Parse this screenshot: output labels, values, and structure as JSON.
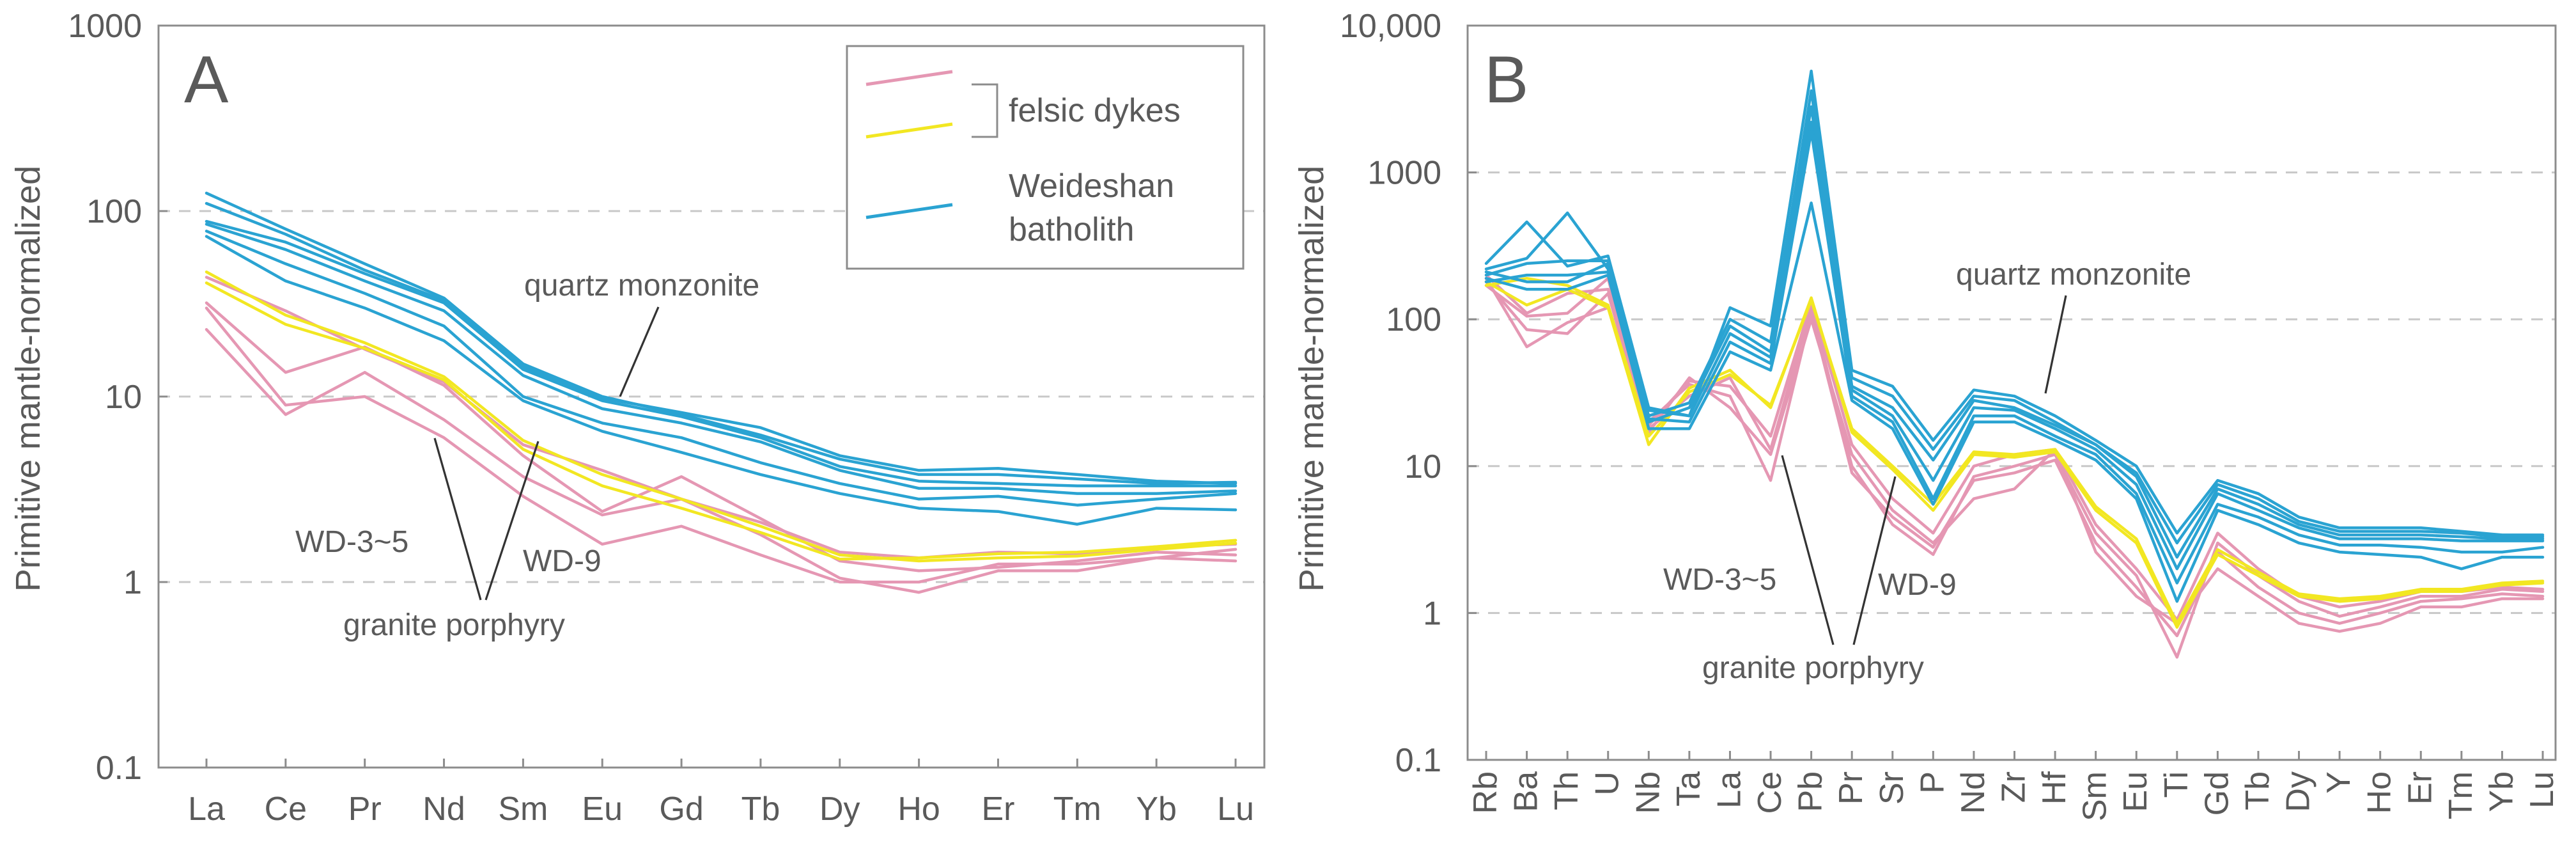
{
  "colors": {
    "felsic_pink": "#e597b3",
    "felsic_yellow": "#f2e722",
    "batholith_blue": "#2aa3d2",
    "axis_gray": "#8c8c8c",
    "text_gray": "#5a5a5a"
  },
  "legend": {
    "felsic": "felsic dykes",
    "batholith_line1": "Weideshan",
    "batholith_line2": "batholith"
  },
  "chart_data": [
    {
      "panel": "A",
      "type": "line",
      "yscale": "log",
      "ylim": [
        0.1,
        1000
      ],
      "ylabel": "Primitive mantle-normalized",
      "yticks": [
        "0.1",
        "1",
        "10",
        "100",
        "1000"
      ],
      "ytick_values": [
        0.1,
        1,
        10,
        100,
        1000
      ],
      "gridlines_at": [
        1,
        10,
        100
      ],
      "categories": [
        "La",
        "Ce",
        "Pr",
        "Nd",
        "Sm",
        "Eu",
        "Gd",
        "Tb",
        "Dy",
        "Ho",
        "Er",
        "Tm",
        "Yb",
        "Lu"
      ],
      "annotations": {
        "quartz": "quartz monzonite",
        "wd35": "WD-3~5",
        "wd9": "WD-9",
        "granite": "granite porphyry"
      },
      "series": [
        {
          "group": "pink",
          "name": "WD-3~5 a",
          "values": [
            44,
            29,
            18,
            12,
            5.5,
            4,
            2.8,
            2.1,
            1.45,
            1.35,
            1.45,
            1.42,
            1.55,
            1.6
          ]
        },
        {
          "group": "pink",
          "name": "WD-3~5 b",
          "values": [
            32,
            13.5,
            18.5,
            11.5,
            4.8,
            2.4,
            3.7,
            2.2,
            1.3,
            1.15,
            1.2,
            1.3,
            1.45,
            1.4
          ]
        },
        {
          "group": "pink",
          "name": "WD-3~5 c",
          "values": [
            23,
            8,
            13.5,
            7.5,
            3.7,
            2.3,
            2.8,
            1.8,
            1.05,
            0.88,
            1.15,
            1.15,
            1.35,
            1.3
          ]
        },
        {
          "group": "pink",
          "name": "WD-3~5 d",
          "values": [
            30,
            9,
            10,
            6,
            2.9,
            1.6,
            2.0,
            1.4,
            1.0,
            1.0,
            1.25,
            1.25,
            1.35,
            1.5
          ]
        },
        {
          "group": "yellow",
          "name": "WD-9 a",
          "values": [
            47,
            27.5,
            19.5,
            12.8,
            5.8,
            3.8,
            2.8,
            2.0,
            1.4,
            1.3,
            1.35,
            1.38,
            1.5,
            1.62
          ]
        },
        {
          "group": "yellow",
          "name": "WD-9 b",
          "values": [
            41,
            24.5,
            18.2,
            12.3,
            5.2,
            3.3,
            2.5,
            1.85,
            1.33,
            1.35,
            1.42,
            1.45,
            1.55,
            1.68
          ]
        },
        {
          "group": "blue",
          "name": "quartz monzonite 1",
          "values": [
            125,
            80,
            52,
            34,
            15,
            10,
            8,
            6.2,
            4.6,
            3.8,
            3.8,
            3.6,
            3.4,
            3.45
          ]
        },
        {
          "group": "blue",
          "name": "quartz monzonite 2",
          "values": [
            110,
            75,
            48,
            33,
            14.5,
            9.8,
            8.2,
            6.8,
            4.8,
            4.0,
            4.1,
            3.8,
            3.5,
            3.4
          ]
        },
        {
          "group": "blue",
          "name": "quartz monzonite 3",
          "values": [
            88,
            68,
            46,
            32,
            14,
            9.5,
            7.8,
            6.0,
            4.2,
            3.5,
            3.4,
            3.3,
            3.3,
            3.3
          ]
        },
        {
          "group": "blue",
          "name": "quartz monzonite 4",
          "values": [
            85,
            62,
            42,
            29,
            13,
            8.6,
            7.2,
            5.7,
            4.0,
            3.2,
            3.2,
            3.0,
            3.0,
            3.1
          ]
        },
        {
          "group": "blue",
          "name": "quartz monzonite 5",
          "values": [
            78,
            52,
            36,
            24,
            10,
            7.2,
            6.0,
            4.4,
            3.4,
            2.8,
            2.9,
            2.6,
            2.8,
            3.0
          ]
        },
        {
          "group": "blue",
          "name": "quartz monzonite 6",
          "values": [
            73,
            42,
            30,
            20,
            9.5,
            6.5,
            5.0,
            3.8,
            3.0,
            2.5,
            2.4,
            2.05,
            2.5,
            2.45
          ]
        }
      ]
    },
    {
      "panel": "B",
      "type": "line",
      "yscale": "log",
      "ylim": [
        0.1,
        10000
      ],
      "ylabel": "Primitive mantle-normalized",
      "yticks": [
        "0.1",
        "1",
        "10",
        "100",
        "1000",
        "10,000"
      ],
      "ytick_values": [
        0.1,
        1,
        10,
        100,
        1000,
        10000
      ],
      "gridlines_at": [
        1,
        10,
        100,
        1000
      ],
      "categories": [
        "Rb",
        "Ba",
        "Th",
        "U",
        "Nb",
        "Ta",
        "La",
        "Ce",
        "Pb",
        "Pr",
        "Sr",
        "P",
        "Nd",
        "Zr",
        "Hf",
        "Sm",
        "Eu",
        "Ti",
        "Gd",
        "Tb",
        "Dy",
        "Y",
        "Ho",
        "Er",
        "Tm",
        "Yb",
        "Lu"
      ],
      "annotations": {
        "quartz": "quartz monzonite",
        "wd35": "WD-3~5",
        "wd9": "WD-9",
        "granite": "granite porphyry"
      },
      "series": [
        {
          "group": "pink",
          "name": "WD-3~5 a",
          "values": [
            170,
            105,
            110,
            190,
            18,
            30,
            40,
            13,
            120,
            10,
            4.0,
            2.5,
            8.5,
            10,
            12,
            3.5,
            1.8,
            0.5,
            3.0,
            1.8,
            1.2,
            0.95,
            1.1,
            1.3,
            1.3,
            1.45,
            1.4
          ]
        },
        {
          "group": "pink",
          "name": "WD-3~5 b",
          "values": [
            190,
            65,
            95,
            120,
            20,
            36,
            30,
            8,
            110,
            9,
            4.5,
            2.8,
            8,
            9,
            11,
            3.0,
            1.5,
            0.7,
            2.6,
            1.5,
            1.0,
            0.85,
            1.0,
            1.2,
            1.25,
            1.35,
            1.3
          ]
        },
        {
          "group": "pink",
          "name": "WD-3~5 c",
          "values": [
            180,
            85,
            80,
            150,
            17,
            40,
            25,
            12,
            100,
            12,
            5.0,
            3.0,
            6,
            7,
            13,
            2.6,
            1.3,
            0.85,
            2.0,
            1.3,
            0.85,
            0.75,
            0.85,
            1.1,
            1.1,
            1.25,
            1.25
          ]
        },
        {
          "group": "pink",
          "name": "WD-3~5 d",
          "values": [
            200,
            110,
            150,
            160,
            19,
            38,
            35,
            16,
            130,
            14,
            6.0,
            3.5,
            10,
            12,
            13,
            4.0,
            2.0,
            0.9,
            3.5,
            2.0,
            1.3,
            1.1,
            1.2,
            1.4,
            1.4,
            1.5,
            1.45
          ]
        },
        {
          "group": "yellow",
          "name": "WD-9 a",
          "values": [
            180,
            125,
            160,
            120,
            14,
            34,
            45,
            25,
            140,
            17,
            9.5,
            5.0,
            12,
            11.5,
            12.5,
            5.0,
            3.0,
            0.8,
            2.5,
            1.8,
            1.3,
            1.2,
            1.25,
            1.4,
            1.4,
            1.55,
            1.6
          ]
        },
        {
          "group": "yellow",
          "name": "WD-9 b",
          "values": [
            170,
            190,
            170,
            125,
            16,
            32,
            42,
            26,
            135,
            18,
            10,
            5.5,
            12.5,
            12,
            13,
            5.3,
            3.2,
            0.85,
            2.7,
            1.9,
            1.35,
            1.25,
            1.3,
            1.45,
            1.45,
            1.6,
            1.65
          ]
        },
        {
          "group": "blue",
          "name": "quartz monzonite 1",
          "values": [
            240,
            460,
            230,
            270,
            25,
            22,
            120,
            90,
            4900,
            45,
            35,
            15,
            33,
            30,
            22,
            15,
            10,
            3.5,
            8.0,
            6.5,
            4.5,
            3.8,
            3.8,
            3.8,
            3.6,
            3.4,
            3.4
          ]
        },
        {
          "group": "blue",
          "name": "quartz monzonite 2",
          "values": [
            220,
            260,
            530,
            220,
            22,
            27,
            100,
            70,
            3600,
            40,
            30,
            13,
            30,
            28,
            20,
            14,
            9.0,
            3.0,
            7.5,
            6.0,
            4.2,
            3.6,
            3.6,
            3.6,
            3.5,
            3.3,
            3.3
          ]
        },
        {
          "group": "blue",
          "name": "quartz monzonite 3",
          "values": [
            200,
            240,
            250,
            250,
            20,
            25,
            90,
            60,
            2800,
            35,
            25,
            11,
            28,
            25,
            19,
            14,
            8.5,
            2.4,
            7.0,
            5.5,
            4.0,
            3.4,
            3.4,
            3.4,
            3.3,
            3.2,
            3.2
          ]
        },
        {
          "group": "blue",
          "name": "quartz monzonite 4",
          "values": [
            180,
            200,
            200,
            210,
            24,
            22,
            80,
            55,
            2200,
            33,
            22,
            8,
            25,
            24,
            18,
            13,
            7.5,
            2.0,
            6.5,
            5.0,
            3.8,
            3.2,
            3.2,
            3.2,
            3.1,
            3.1,
            3.1
          ]
        },
        {
          "group": "blue",
          "name": "quartz monzonite 5",
          "values": [
            210,
            180,
            180,
            240,
            21,
            20,
            70,
            50,
            1900,
            30,
            20,
            6,
            22,
            22,
            16,
            12,
            6.5,
            1.6,
            5.5,
            4.5,
            3.4,
            2.9,
            2.9,
            2.8,
            2.6,
            2.6,
            2.8
          ]
        },
        {
          "group": "blue",
          "name": "quartz monzonite 6",
          "values": [
            190,
            160,
            160,
            200,
            18,
            18,
            60,
            45,
            620,
            28,
            18,
            5.5,
            20,
            20,
            15,
            11,
            6.0,
            1.2,
            5.0,
            4.0,
            3.0,
            2.6,
            2.5,
            2.4,
            2.0,
            2.4,
            2.4
          ]
        }
      ]
    }
  ]
}
